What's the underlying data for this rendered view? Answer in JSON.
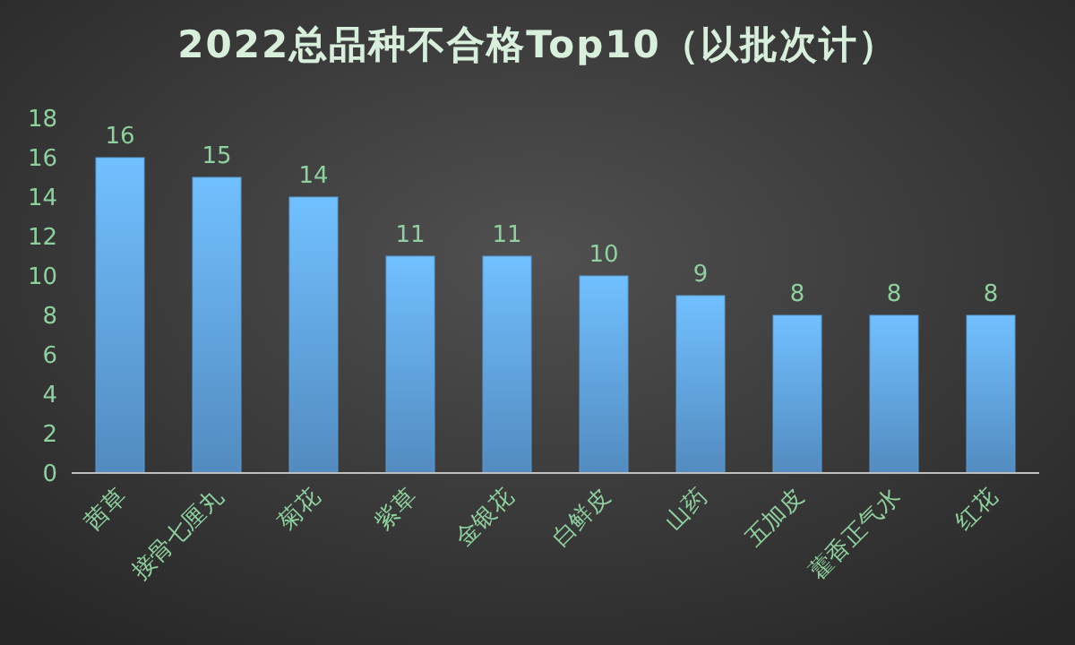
{
  "chart_data": {
    "type": "bar",
    "title": "2022总品种不合格Top10（以批次计）",
    "categories": [
      "茜草",
      "接骨七厘丸",
      "菊花",
      "紫草",
      "金银花",
      "白鲜皮",
      "山药",
      "五加皮",
      "藿香正气水",
      "红花"
    ],
    "values": [
      16,
      15,
      14,
      11,
      11,
      10,
      9,
      8,
      8,
      8
    ],
    "color": "#5b9bd5",
    "ylim": [
      0,
      18
    ],
    "yticks": [
      0,
      2,
      4,
      6,
      8,
      10,
      12,
      14,
      16,
      18
    ],
    "data_labels": true,
    "grid": false
  }
}
